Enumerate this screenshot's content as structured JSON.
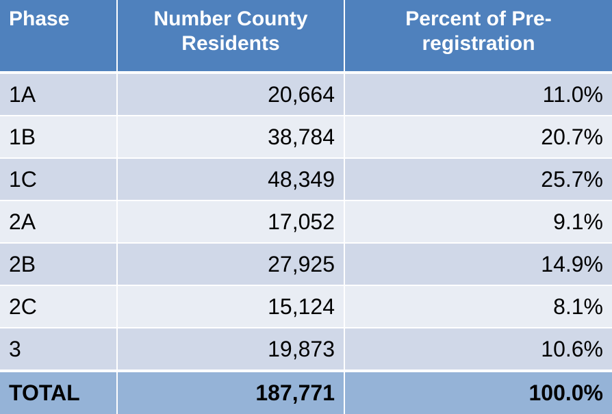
{
  "table": {
    "headers": [
      "Phase",
      "Number County Residents",
      "Percent of Pre-registration"
    ],
    "rows": [
      {
        "phase": "1A",
        "residents": "20,664",
        "percent": "11.0%"
      },
      {
        "phase": "1B",
        "residents": "38,784",
        "percent": "20.7%"
      },
      {
        "phase": "1C",
        "residents": "48,349",
        "percent": "25.7%"
      },
      {
        "phase": "2A",
        "residents": "17,052",
        "percent": "9.1%"
      },
      {
        "phase": "2B",
        "residents": "27,925",
        "percent": "14.9%"
      },
      {
        "phase": "2C",
        "residents": "15,124",
        "percent": "8.1%"
      },
      {
        "phase": "3",
        "residents": "19,873",
        "percent": "10.6%"
      }
    ],
    "total": {
      "label": "TOTAL",
      "residents": "187,771",
      "percent": "100.0%"
    }
  },
  "colors": {
    "header_bg": "#4f81bd",
    "row_dark": "#d0d8e8",
    "row_light": "#e9edf4",
    "total_bg": "#95b3d7"
  }
}
